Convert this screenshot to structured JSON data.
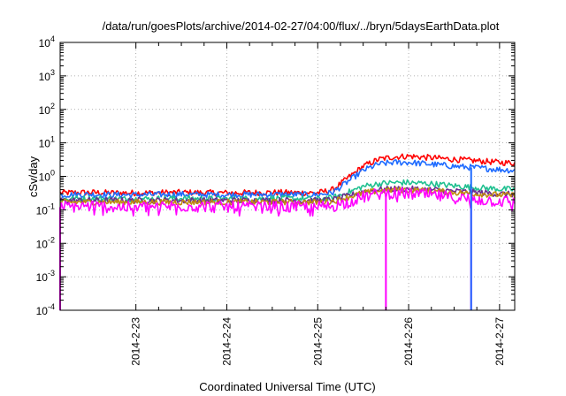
{
  "chart_data": {
    "type": "line",
    "title": "/data/run/goesPlots/archive/2014-02-27/04:00/flux/../bryn/5daysEarthData.plot",
    "xlabel": "Coordinated Universal Time (UTC)",
    "ylabel": "cSv/day",
    "yscale": "log",
    "ylim": [
      0.0001,
      10000
    ],
    "xlim": [
      "2014-02-22T04:00",
      "2014-02-27T04:00"
    ],
    "grid": true,
    "legend": "none",
    "x_ticks": [
      "2014-2-23",
      "2014-2-24",
      "2014-2-25",
      "2014-2-26",
      "2014-2-27"
    ],
    "y_ticks": [
      {
        "base": "10",
        "exp": "-4",
        "value": 0.0001
      },
      {
        "base": "10",
        "exp": "-3",
        "value": 0.001
      },
      {
        "base": "10",
        "exp": "-2",
        "value": 0.01
      },
      {
        "base": "10",
        "exp": "-1",
        "value": 0.1
      },
      {
        "base": "10",
        "exp": "0",
        "value": 1
      },
      {
        "base": "10",
        "exp": "1",
        "value": 10
      },
      {
        "base": "10",
        "exp": "2",
        "value": 100
      },
      {
        "base": "10",
        "exp": "3",
        "value": 1000
      },
      {
        "base": "10",
        "exp": "4",
        "value": 10000
      }
    ],
    "x": [
      "2014-02-22T04:00",
      "2014-02-22T12:00",
      "2014-02-22T18:00",
      "2014-02-23T00:00",
      "2014-02-23T12:00",
      "2014-02-24T00:00",
      "2014-02-24T12:00",
      "2014-02-25T00:00",
      "2014-02-25T04:00",
      "2014-02-25T08:00",
      "2014-02-25T12:00",
      "2014-02-25T16:00",
      "2014-02-25T20:00",
      "2014-02-26T00:00",
      "2014-02-26T06:00",
      "2014-02-26T12:00",
      "2014-02-26T18:00",
      "2014-02-27T00:00",
      "2014-02-27T04:00"
    ],
    "series": [
      {
        "color": "#ff0000",
        "values": [
          0.32,
          0.33,
          0.32,
          0.32,
          0.33,
          0.32,
          0.33,
          0.32,
          0.4,
          0.9,
          2.0,
          3.2,
          3.8,
          4.0,
          3.6,
          3.2,
          2.9,
          2.6,
          2.5
        ]
      },
      {
        "color": "#1e6bff",
        "values": [
          0.28,
          0.29,
          0.28,
          0.28,
          0.29,
          0.28,
          0.29,
          0.28,
          0.33,
          0.7,
          1.5,
          2.3,
          2.6,
          2.6,
          2.3,
          2.0,
          1.8,
          1.6,
          1.5
        ]
      },
      {
        "color": "#20c090",
        "values": [
          0.21,
          0.22,
          0.21,
          0.21,
          0.22,
          0.21,
          0.22,
          0.21,
          0.23,
          0.33,
          0.5,
          0.6,
          0.65,
          0.65,
          0.6,
          0.52,
          0.46,
          0.42,
          0.4
        ]
      },
      {
        "color": "#6b2d8f",
        "values": [
          0.19,
          0.19,
          0.19,
          0.19,
          0.19,
          0.19,
          0.19,
          0.19,
          0.2,
          0.26,
          0.35,
          0.4,
          0.42,
          0.42,
          0.4,
          0.36,
          0.33,
          0.3,
          0.29
        ]
      },
      {
        "color": "#c08a10",
        "values": [
          0.17,
          0.17,
          0.17,
          0.17,
          0.17,
          0.17,
          0.17,
          0.17,
          0.18,
          0.24,
          0.32,
          0.37,
          0.39,
          0.39,
          0.37,
          0.33,
          0.3,
          0.28,
          0.27
        ]
      },
      {
        "color": "#ff00ff",
        "values": [
          0.12,
          0.13,
          0.12,
          0.12,
          0.13,
          0.12,
          0.12,
          0.12,
          0.13,
          0.17,
          0.24,
          0.3,
          0.32,
          0.3,
          0.27,
          0.23,
          0.2,
          0.18,
          0.17
        ]
      }
    ],
    "dropouts": [
      {
        "color": "#ff00ff",
        "x": "2014-02-22T04:00"
      },
      {
        "color": "#ff00ff",
        "x": "2014-02-25T18:00"
      },
      {
        "color": "#ff00ff",
        "x": "2014-02-26T16:30"
      },
      {
        "color": "#1e6bff",
        "x": "2014-02-26T16:30"
      }
    ]
  }
}
